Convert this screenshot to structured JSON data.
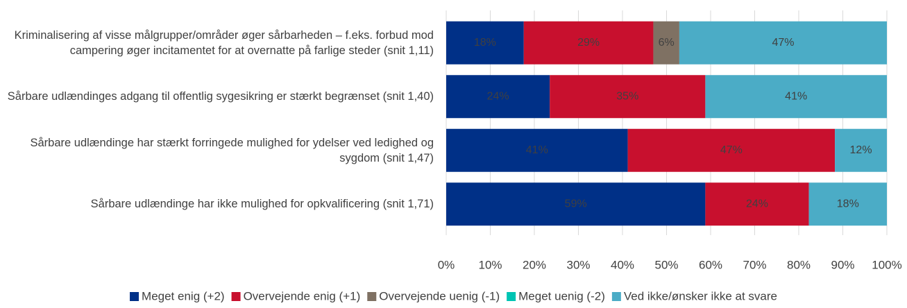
{
  "chart_data": {
    "type": "stacked-bar-horizontal",
    "categories": [
      "Kriminalisering af visse målgrupper/områder øger sårbarheden – f.eks. forbud mod campering øger incitamentet for at overnatte på farlige steder (snit 1,11)",
      "Sårbare udlændinges adgang til offentlig sygesikring er stærkt begrænset (snit 1,40)",
      "Sårbare udlændinge har stærkt forringede mulighed for ydelser ved ledighed og sygdom (snit 1,47)",
      "Sårbare udlændinge har ikke mulighed for opkvalificering (snit 1,71)"
    ],
    "series": [
      {
        "name": "Meget enig (+2)",
        "color": "#003087",
        "values": [
          17.6,
          23.5,
          41.2,
          58.8
        ],
        "value_labels": [
          "18%",
          "24%",
          "41%",
          "59%"
        ]
      },
      {
        "name": "Overvejende enig (+1)",
        "color": "#c8102e",
        "values": [
          29.4,
          35.3,
          47.0,
          23.5
        ],
        "value_labels": [
          "29%",
          "35%",
          "47%",
          "24%"
        ]
      },
      {
        "name": "Overvejende uenig (-1)",
        "color": "#7f7163",
        "values": [
          5.9,
          0,
          0,
          0
        ],
        "value_labels": [
          "6%",
          null,
          null,
          null
        ]
      },
      {
        "name": "Meget uenig (-2)",
        "color": "#00c4b3",
        "values": [
          0,
          0,
          0,
          0
        ],
        "value_labels": [
          null,
          null,
          null,
          null
        ]
      },
      {
        "name": "Ved ikke/ønsker ikke at svare",
        "color": "#4bacc6",
        "values": [
          47.1,
          41.2,
          11.8,
          17.7
        ],
        "value_labels": [
          "47%",
          "41%",
          "12%",
          "18%"
        ]
      }
    ],
    "xlim": [
      0,
      100
    ],
    "xticks": [
      {
        "value": 0,
        "label": "0%"
      },
      {
        "value": 10,
        "label": "10%"
      },
      {
        "value": 20,
        "label": "20%"
      },
      {
        "value": 30,
        "label": "30%"
      },
      {
        "value": 40,
        "label": "40%"
      },
      {
        "value": 50,
        "label": "50%"
      },
      {
        "value": 60,
        "label": "60%"
      },
      {
        "value": 70,
        "label": "70%"
      },
      {
        "value": 80,
        "label": "80%"
      },
      {
        "value": 90,
        "label": "90%"
      },
      {
        "value": 100,
        "label": "100%"
      }
    ],
    "grid": true,
    "legend": "bottom"
  }
}
